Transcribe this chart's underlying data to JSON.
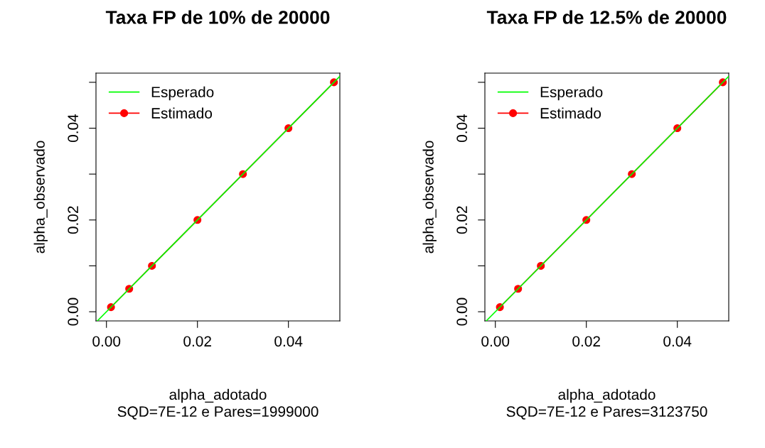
{
  "chart_data": [
    {
      "type": "line",
      "title": "Taxa FP de 10% de 20000",
      "xlabel": "alpha_adotado\nSQD=7E-12 e Pares=1999000",
      "ylabel": "alpha_observado",
      "xlim": [
        -0.0023,
        0.0513
      ],
      "ylim": [
        -0.002,
        0.052
      ],
      "xticks": [
        {
          "value": 0,
          "label": "0.00"
        },
        {
          "value": 0.02,
          "label": "0.02"
        },
        {
          "value": 0.04,
          "label": "0.04"
        }
      ],
      "yticks": [
        {
          "value": 0,
          "label": "0.00"
        },
        {
          "value": 0.01,
          "label": null
        },
        {
          "value": 0.02,
          "label": "0.02"
        },
        {
          "value": 0.03,
          "label": null
        },
        {
          "value": 0.04,
          "label": "0.04"
        },
        {
          "value": 0.05,
          "label": null
        }
      ],
      "legend": "top left",
      "series": [
        {
          "name": "Esperado",
          "color": "#00ff00",
          "marker": "none",
          "line_style": "solid",
          "x": [
            -0.002,
            0.0513
          ],
          "values": [
            -0.002,
            0.0513
          ]
        },
        {
          "name": "Estimado",
          "color": "#ff0000",
          "marker": "circle",
          "line_style": "solid",
          "x": [
            0.001,
            0.005,
            0.01,
            0.02,
            0.03,
            0.04,
            0.05
          ],
          "values": [
            0.001,
            0.005,
            0.01,
            0.02,
            0.03,
            0.04,
            0.05
          ]
        }
      ]
    },
    {
      "type": "line",
      "title": "Taxa FP de 12.5% de 20000",
      "xlabel": "alpha_adotado\nSQD=7E-12 e Pares=3123750",
      "ylabel": "alpha_observado",
      "xlim": [
        -0.0023,
        0.0513
      ],
      "ylim": [
        -0.002,
        0.052
      ],
      "xticks": [
        {
          "value": 0,
          "label": "0.00"
        },
        {
          "value": 0.02,
          "label": "0.02"
        },
        {
          "value": 0.04,
          "label": "0.04"
        }
      ],
      "yticks": [
        {
          "value": 0,
          "label": "0.00"
        },
        {
          "value": 0.01,
          "label": null
        },
        {
          "value": 0.02,
          "label": "0.02"
        },
        {
          "value": 0.03,
          "label": null
        },
        {
          "value": 0.04,
          "label": "0.04"
        },
        {
          "value": 0.05,
          "label": null
        }
      ],
      "legend": "top left",
      "series": [
        {
          "name": "Esperado",
          "color": "#00ff00",
          "marker": "none",
          "line_style": "solid",
          "x": [
            -0.002,
            0.0513
          ],
          "values": [
            -0.002,
            0.0513
          ]
        },
        {
          "name": "Estimado",
          "color": "#ff0000",
          "marker": "circle",
          "line_style": "solid",
          "x": [
            0.001,
            0.005,
            0.01,
            0.02,
            0.03,
            0.04,
            0.05
          ],
          "values": [
            0.001,
            0.005,
            0.01,
            0.02,
            0.03,
            0.04,
            0.05
          ]
        }
      ]
    }
  ]
}
